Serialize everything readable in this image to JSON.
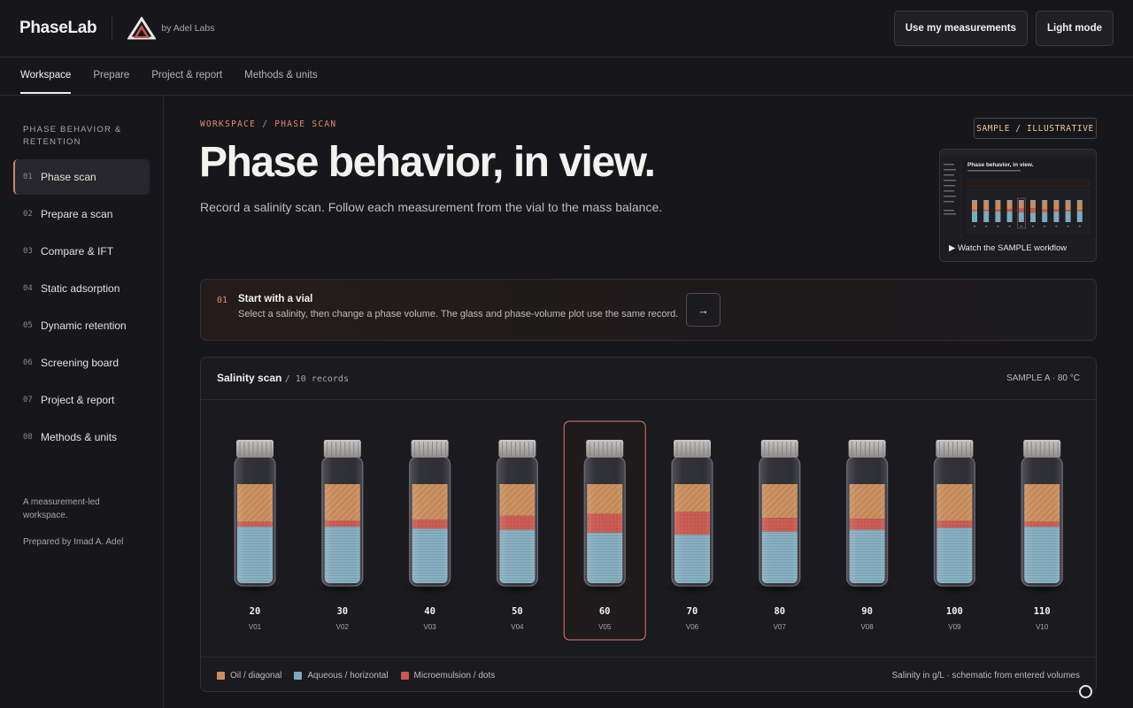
{
  "app": {
    "name": "PhaseLab",
    "byline": "by Adel Labs"
  },
  "top_actions": {
    "measurements": "Use my measurements",
    "theme": "Light mode"
  },
  "tabs": [
    {
      "label": "Workspace",
      "active": true
    },
    {
      "label": "Prepare",
      "active": false
    },
    {
      "label": "Project & report",
      "active": false
    },
    {
      "label": "Methods & units",
      "active": false
    }
  ],
  "sidebar": {
    "heading": "PHASE BEHAVIOR & RETENTION",
    "items": [
      {
        "num": "01",
        "label": "Phase scan",
        "active": true
      },
      {
        "num": "02",
        "label": "Prepare a scan",
        "active": false
      },
      {
        "num": "03",
        "label": "Compare & IFT",
        "active": false
      },
      {
        "num": "04",
        "label": "Static adsorption",
        "active": false
      },
      {
        "num": "05",
        "label": "Dynamic retention",
        "active": false
      },
      {
        "num": "06",
        "label": "Screening board",
        "active": false
      },
      {
        "num": "07",
        "label": "Project & report",
        "active": false
      },
      {
        "num": "08",
        "label": "Methods & units",
        "active": false
      }
    ],
    "footer_tagline": "A measurement-led workspace.",
    "footer_author": "Prepared by Imad A. Adel"
  },
  "main": {
    "breadcrumb": "WORKSPACE / PHASE SCAN",
    "title": "Phase behavior, in view.",
    "subtitle": "Record a salinity scan. Follow each measurement from the vial to the mass balance.",
    "sample_badge": "SAMPLE / ILLUSTRATIVE",
    "preview_caption": "▶ Watch the SAMPLE workflow",
    "preview_title": "Phase behavior, in view."
  },
  "step": {
    "num": "01",
    "title": "Start with a vial",
    "desc": "Select a salinity, then change a phase volume. The glass and phase-volume plot use the same record.",
    "arrow": "→"
  },
  "scan": {
    "title": "Salinity scan",
    "count": "/ 10 records",
    "sample_label": "SAMPLE A · 80 °C",
    "selected": "V05",
    "vials": [
      {
        "id": "V01",
        "salinity": "20",
        "oil": 0.38,
        "micro": 0.05,
        "aqueous": 0.57
      },
      {
        "id": "V02",
        "salinity": "30",
        "oil": 0.37,
        "micro": 0.06,
        "aqueous": 0.57
      },
      {
        "id": "V03",
        "salinity": "40",
        "oil": 0.36,
        "micro": 0.09,
        "aqueous": 0.55
      },
      {
        "id": "V04",
        "salinity": "50",
        "oil": 0.32,
        "micro": 0.14,
        "aqueous": 0.54
      },
      {
        "id": "V05",
        "salinity": "60",
        "oil": 0.3,
        "micro": 0.19,
        "aqueous": 0.51
      },
      {
        "id": "V06",
        "salinity": "70",
        "oil": 0.28,
        "micro": 0.23,
        "aqueous": 0.49
      },
      {
        "id": "V07",
        "salinity": "80",
        "oil": 0.34,
        "micro": 0.14,
        "aqueous": 0.52
      },
      {
        "id": "V08",
        "salinity": "90",
        "oil": 0.35,
        "micro": 0.11,
        "aqueous": 0.54
      },
      {
        "id": "V09",
        "salinity": "100",
        "oil": 0.37,
        "micro": 0.07,
        "aqueous": 0.56
      },
      {
        "id": "V10",
        "salinity": "110",
        "oil": 0.38,
        "micro": 0.05,
        "aqueous": 0.57
      }
    ],
    "legend": [
      {
        "label": "Oil / diagonal",
        "color": "#c98d5c"
      },
      {
        "label": "Aqueous / horizontal",
        "color": "#7ea9bd"
      },
      {
        "label": "Microemulsion / dots",
        "color": "#c9584f"
      }
    ],
    "legend_note": "Salinity in g/L · schematic from entered volumes"
  },
  "colors": {
    "accent": "#e08a6f",
    "oil": "#c98d5c",
    "aqueous": "#7ea9bd",
    "micro": "#c9584f"
  }
}
